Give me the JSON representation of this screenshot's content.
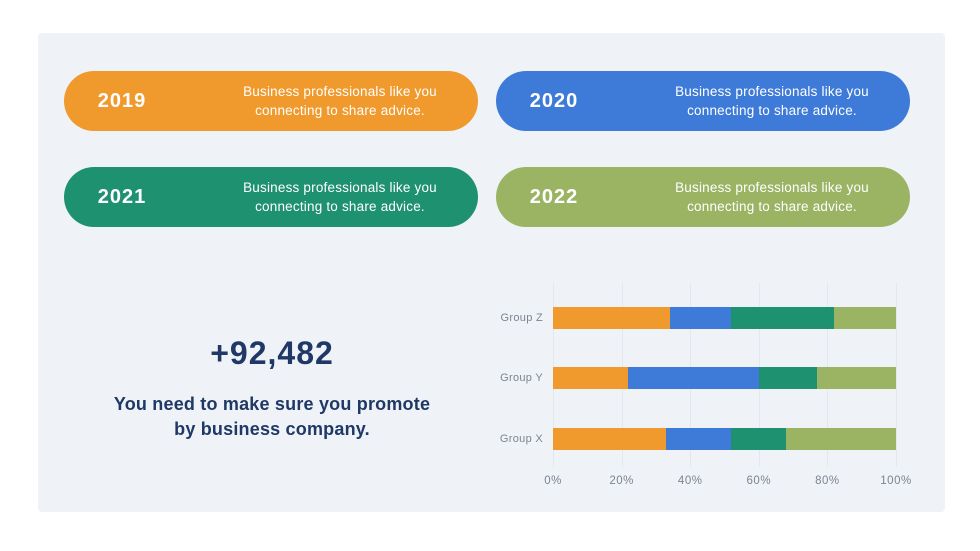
{
  "page": {
    "background": "#ffffff",
    "panel_background": "#EFF3F8"
  },
  "timeline": {
    "items": [
      {
        "year": "2019",
        "line1": "Business professionals like you",
        "line2": "connecting to share advice.",
        "color": "#F09A2D"
      },
      {
        "year": "2020",
        "line1": "Business professionals like you",
        "line2": "connecting to share advice.",
        "color": "#3E7BD9"
      },
      {
        "year": "2021",
        "line1": "Business professionals like you",
        "line2": "connecting to share advice.",
        "color": "#1E9170"
      },
      {
        "year": "2022",
        "line1": "Business professionals like you",
        "line2": "connecting to share advice.",
        "color": "#9BB464"
      }
    ]
  },
  "stat": {
    "value": "+92,482",
    "desc_line1": "You need to make sure you promote",
    "desc_line2": "by business company.",
    "color": "#1F3865"
  },
  "chart_data": {
    "type": "bar",
    "orientation": "horizontal",
    "stacked": true,
    "percent_stacked": true,
    "categories": [
      "Group Z",
      "Group Y",
      "Group X"
    ],
    "series": [
      {
        "name": "2019",
        "color": "#F09A2D",
        "values": [
          34,
          22,
          33
        ]
      },
      {
        "name": "2020",
        "color": "#3E7BD9",
        "values": [
          18,
          38,
          19
        ]
      },
      {
        "name": "2021",
        "color": "#1E9170",
        "values": [
          30,
          17,
          16
        ]
      },
      {
        "name": "2022",
        "color": "#9BB464",
        "values": [
          18,
          23,
          32
        ]
      }
    ],
    "x_ticks": [
      "0%",
      "20%",
      "40%",
      "60%",
      "80%",
      "100%"
    ],
    "xlim": [
      0,
      100
    ],
    "grid": true,
    "legend": false,
    "label_color": "#7C848E",
    "gridline_color": "#E3E8EE"
  }
}
